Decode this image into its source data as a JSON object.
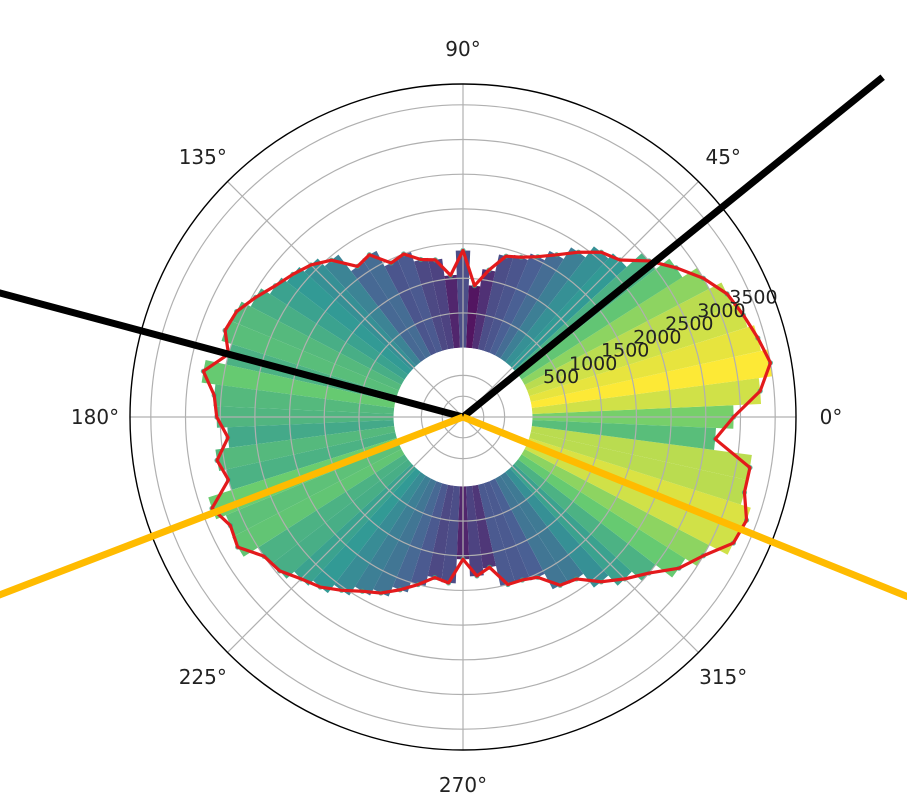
{
  "chart_data": {
    "type": "polar-bar",
    "title": "",
    "angle_ticks": [
      "0°",
      "45°",
      "90°",
      "135°",
      "180°",
      "225°",
      "270°",
      "315°"
    ],
    "radial_ticks": [
      500,
      1000,
      1500,
      2000,
      2500,
      3000,
      3500
    ],
    "radial_tick_labels": [
      "500",
      "1000",
      "1500",
      "2000",
      "2500",
      "3000",
      "3500"
    ],
    "rmax": 3800,
    "inner_offset": 1000,
    "grid": true,
    "colormap": [
      "#440154",
      "#3b528b",
      "#21918c",
      "#5ec962",
      "#fde725"
    ],
    "outline_color": "#e31a1c",
    "bins_deg": [
      0,
      5,
      10,
      15,
      20,
      25,
      30,
      35,
      40,
      45,
      50,
      55,
      60,
      65,
      70,
      75,
      80,
      85,
      90,
      95,
      100,
      105,
      110,
      115,
      120,
      125,
      130,
      135,
      140,
      145,
      150,
      155,
      160,
      165,
      170,
      175,
      180,
      185,
      190,
      195,
      200,
      205,
      210,
      215,
      220,
      225,
      230,
      235,
      240,
      245,
      250,
      255,
      260,
      265,
      270,
      275,
      280,
      285,
      290,
      295,
      300,
      305,
      310,
      315,
      320,
      325,
      330,
      335,
      340,
      345,
      350,
      355
    ],
    "values": [
      2900,
      3300,
      3500,
      3400,
      3300,
      3200,
      3000,
      2750,
      2500,
      2200,
      2100,
      1900,
      1700,
      1550,
      1450,
      1400,
      1150,
      900,
      1400,
      1050,
      1300,
      1350,
      1500,
      1450,
      1700,
      1650,
      1950,
      2100,
      2200,
      2300,
      2450,
      2600,
      2650,
      2500,
      2800,
      2600,
      2550,
      2400,
      2600,
      2500,
      2850,
      2700,
      2750,
      2500,
      2450,
      2300,
      2200,
      2050,
      1900,
      1800,
      1650,
      1500,
      1350,
      1400,
      1050,
      1300,
      1200,
      1500,
      1500,
      1550,
      1800,
      1850,
      2100,
      2300,
      2500,
      2800,
      3000,
      3300,
      3350,
      3200,
      3200,
      2650
    ],
    "overlay_lines": [
      {
        "color": "#000000",
        "angles_deg": [
          39,
          165
        ]
      },
      {
        "color": "#ffbb00",
        "angles_deg": [
          201,
          338
        ]
      }
    ]
  }
}
